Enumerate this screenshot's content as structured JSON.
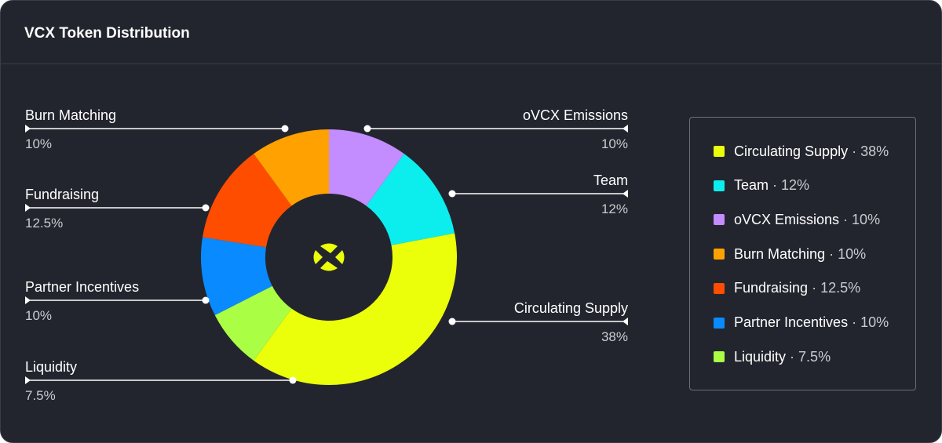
{
  "header": {
    "title": "VCX Token Distribution"
  },
  "chart_data": {
    "type": "pie",
    "title": "VCX Token Distribution",
    "donut": true,
    "center_icon": "vaultcraft-logo-icon",
    "start_category": "oVCX Emissions",
    "direction": "clockwise",
    "slices": [
      {
        "label": "oVCX Emissions",
        "value": 10,
        "value_label": "10%",
        "color": "#c38cff",
        "side": "right"
      },
      {
        "label": "Team",
        "value": 12,
        "value_label": "12%",
        "color": "#0ceeee",
        "side": "right"
      },
      {
        "label": "Circulating Supply",
        "value": 38,
        "value_label": "38%",
        "color": "#ecff0a",
        "side": "right"
      },
      {
        "label": "Liquidity",
        "value": 7.5,
        "value_label": "7.5%",
        "color": "#aaff44",
        "side": "left"
      },
      {
        "label": "Partner Incentives",
        "value": 10,
        "value_label": "10%",
        "color": "#0a8aff",
        "side": "left"
      },
      {
        "label": "Fundraising",
        "value": 12.5,
        "value_label": "12.5%",
        "color": "#ff4d00",
        "side": "left"
      },
      {
        "label": "Burn Matching",
        "value": 10,
        "value_label": "10%",
        "color": "#ffa100",
        "side": "left"
      }
    ]
  },
  "legend": {
    "separator": "·",
    "items": [
      {
        "label": "Circulating Supply",
        "value_label": "38%",
        "color": "#ecff0a"
      },
      {
        "label": "Team",
        "value_label": "12%",
        "color": "#0ceeee"
      },
      {
        "label": "oVCX Emissions",
        "value_label": "10%",
        "color": "#c38cff"
      },
      {
        "label": "Burn Matching",
        "value_label": "10%",
        "color": "#ffa100"
      },
      {
        "label": "Fundraising",
        "value_label": "12.5%",
        "color": "#ff4d00"
      },
      {
        "label": "Partner Incentives",
        "value_label": "10%",
        "color": "#0a8aff"
      },
      {
        "label": "Liquidity",
        "value_label": "7.5%",
        "color": "#aaff44"
      }
    ]
  },
  "colors": {
    "background": "#23252e",
    "border": "#3a3d48",
    "text": "#ffffff",
    "muted_text": "#c9cbd1"
  }
}
